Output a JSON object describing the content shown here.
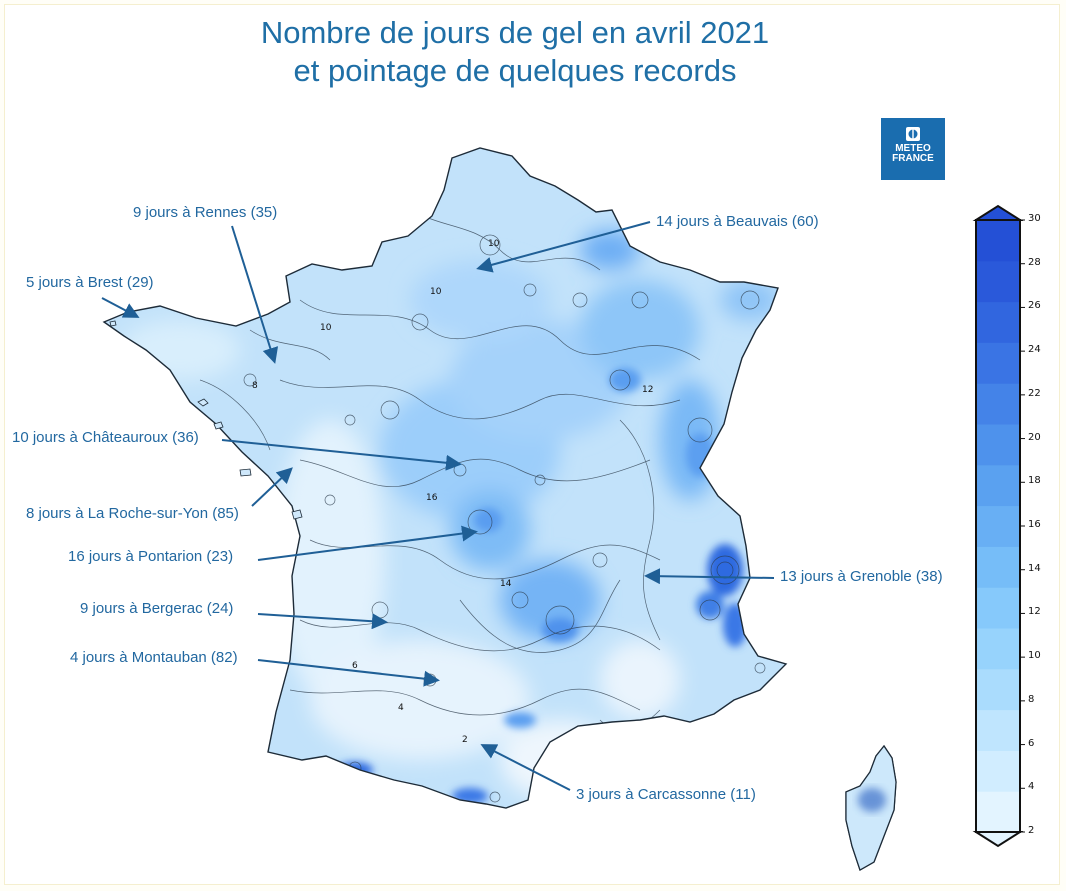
{
  "title": {
    "line1": "Nombre de jours de gel en avril 2021",
    "line2": "et pointage de quelques records"
  },
  "logo": {
    "line1": "METEO",
    "line2": "FRANCE"
  },
  "records": [
    {
      "id": "rennes",
      "label": "9 jours à Rennes (35)"
    },
    {
      "id": "brest",
      "label": "5 jours à Brest (29)"
    },
    {
      "id": "beauvais",
      "label": "14 jours à Beauvais (60)"
    },
    {
      "id": "chateauroux",
      "label": "10 jours à Châteauroux (36)"
    },
    {
      "id": "laroche",
      "label": "8 jours à La Roche-sur-Yon (85)"
    },
    {
      "id": "pontarion",
      "label": "16 jours à Pontarion (23)"
    },
    {
      "id": "grenoble",
      "label": "13 jours à Grenoble (38)"
    },
    {
      "id": "bergerac",
      "label": "9 jours à Bergerac (24)"
    },
    {
      "id": "montauban",
      "label": "4 jours à Montauban (82)"
    },
    {
      "id": "carcassonne",
      "label": "3 jours à Carcassonne (11)"
    }
  ],
  "contour_labels": [
    "10",
    "10",
    "10",
    "12",
    "16",
    "14",
    "4",
    "2",
    "8",
    "6"
  ],
  "legend": {
    "ticks": [
      "30",
      "28",
      "26",
      "24",
      "22",
      "20",
      "18",
      "16",
      "14",
      "12",
      "10",
      "8",
      "6",
      "4",
      "2"
    ],
    "colors": [
      "#e3f4ff",
      "#d1edff",
      "#bfe5fe",
      "#aadcfd",
      "#97d3fc",
      "#86c9fb",
      "#76bdf8",
      "#68aff4",
      "#5aa1f0",
      "#4e92ec",
      "#4483e8",
      "#3a74e4",
      "#3166df",
      "#2a59da",
      "#2450d6"
    ]
  }
}
